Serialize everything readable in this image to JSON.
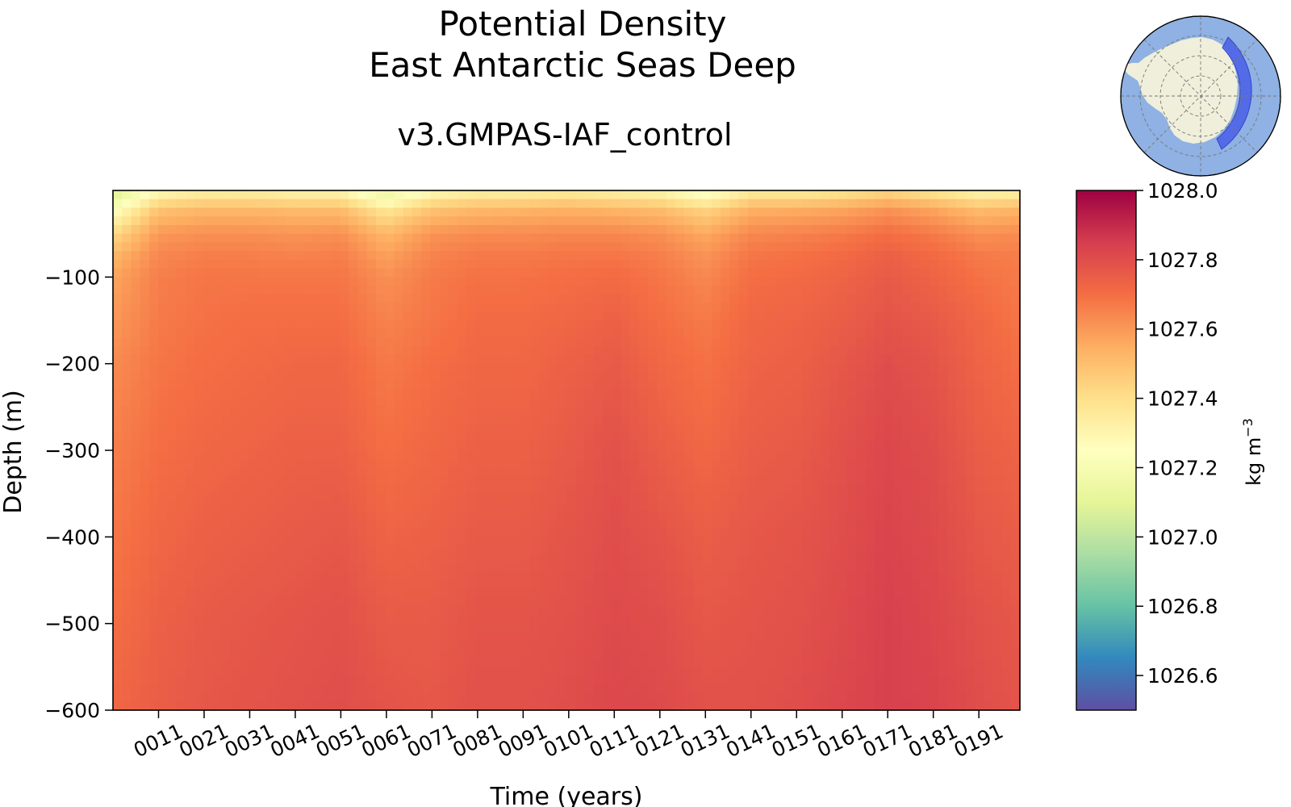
{
  "chart_data": {
    "type": "heatmap",
    "title": [
      "Potential Density",
      "East Antarctic Seas Deep"
    ],
    "subtitle": "v3.GMPAS-IAF_control",
    "xlabel": "Time (years)",
    "ylabel": "Depth (m)",
    "x_range": [
      1,
      200
    ],
    "y_range": [
      -600,
      0
    ],
    "x_ticks": [
      {
        "value": 11,
        "label": "0011"
      },
      {
        "value": 21,
        "label": "0021"
      },
      {
        "value": 31,
        "label": "0031"
      },
      {
        "value": 41,
        "label": "0041"
      },
      {
        "value": 51,
        "label": "0051"
      },
      {
        "value": 61,
        "label": "0061"
      },
      {
        "value": 71,
        "label": "0071"
      },
      {
        "value": 81,
        "label": "0081"
      },
      {
        "value": 91,
        "label": "0091"
      },
      {
        "value": 101,
        "label": "0101"
      },
      {
        "value": 111,
        "label": "0111"
      },
      {
        "value": 121,
        "label": "0121"
      },
      {
        "value": 131,
        "label": "0131"
      },
      {
        "value": 141,
        "label": "0141"
      },
      {
        "value": 151,
        "label": "0151"
      },
      {
        "value": 161,
        "label": "0161"
      },
      {
        "value": 171,
        "label": "0171"
      },
      {
        "value": 181,
        "label": "0181"
      },
      {
        "value": 191,
        "label": "0191"
      }
    ],
    "y_ticks": [
      {
        "value": -100,
        "label": "−100"
      },
      {
        "value": -200,
        "label": "−200"
      },
      {
        "value": -300,
        "label": "−300"
      },
      {
        "value": -400,
        "label": "−400"
      },
      {
        "value": -500,
        "label": "−500"
      },
      {
        "value": -600,
        "label": "−600"
      }
    ],
    "depths": [
      0,
      -10,
      -25,
      -50,
      -75,
      -100,
      -150,
      -200,
      -300,
      -400,
      -500,
      -600
    ],
    "years": [
      1,
      11,
      21,
      31,
      41,
      51,
      61,
      71,
      81,
      91,
      101,
      111,
      121,
      131,
      141,
      151,
      161,
      171,
      181,
      191,
      200
    ],
    "values": [
      [
        1027.05,
        1027.25,
        1027.3,
        1027.3,
        1027.28,
        1027.28,
        1027.1,
        1027.25,
        1027.3,
        1027.3,
        1027.32,
        1027.3,
        1027.28,
        1027.2,
        1027.32,
        1027.32,
        1027.35,
        1027.4,
        1027.35,
        1027.28,
        1027.3
      ],
      [
        1027.12,
        1027.38,
        1027.42,
        1027.42,
        1027.4,
        1027.4,
        1027.22,
        1027.38,
        1027.42,
        1027.42,
        1027.44,
        1027.42,
        1027.4,
        1027.3,
        1027.44,
        1027.44,
        1027.47,
        1027.52,
        1027.47,
        1027.4,
        1027.42
      ],
      [
        1027.25,
        1027.5,
        1027.53,
        1027.53,
        1027.52,
        1027.52,
        1027.38,
        1027.5,
        1027.53,
        1027.54,
        1027.55,
        1027.54,
        1027.52,
        1027.45,
        1027.55,
        1027.56,
        1027.58,
        1027.62,
        1027.58,
        1027.52,
        1027.54
      ],
      [
        1027.42,
        1027.6,
        1027.62,
        1027.62,
        1027.61,
        1027.62,
        1027.52,
        1027.61,
        1027.63,
        1027.63,
        1027.64,
        1027.64,
        1027.62,
        1027.56,
        1027.64,
        1027.65,
        1027.67,
        1027.7,
        1027.67,
        1027.62,
        1027.63
      ],
      [
        1027.52,
        1027.64,
        1027.66,
        1027.66,
        1027.65,
        1027.66,
        1027.58,
        1027.65,
        1027.67,
        1027.67,
        1027.68,
        1027.68,
        1027.66,
        1027.61,
        1027.68,
        1027.69,
        1027.71,
        1027.74,
        1027.71,
        1027.67,
        1027.66
      ],
      [
        1027.57,
        1027.66,
        1027.68,
        1027.68,
        1027.68,
        1027.68,
        1027.62,
        1027.67,
        1027.69,
        1027.69,
        1027.7,
        1027.71,
        1027.68,
        1027.64,
        1027.7,
        1027.71,
        1027.73,
        1027.76,
        1027.73,
        1027.69,
        1027.67
      ],
      [
        1027.6,
        1027.67,
        1027.69,
        1027.7,
        1027.7,
        1027.7,
        1027.65,
        1027.68,
        1027.71,
        1027.71,
        1027.72,
        1027.74,
        1027.7,
        1027.67,
        1027.72,
        1027.73,
        1027.75,
        1027.78,
        1027.76,
        1027.72,
        1027.68
      ],
      [
        1027.63,
        1027.68,
        1027.7,
        1027.71,
        1027.72,
        1027.72,
        1027.67,
        1027.7,
        1027.72,
        1027.72,
        1027.74,
        1027.76,
        1027.72,
        1027.69,
        1027.73,
        1027.74,
        1027.77,
        1027.8,
        1027.78,
        1027.73,
        1027.7
      ],
      [
        1027.66,
        1027.7,
        1027.72,
        1027.73,
        1027.74,
        1027.74,
        1027.7,
        1027.72,
        1027.74,
        1027.74,
        1027.76,
        1027.79,
        1027.75,
        1027.72,
        1027.75,
        1027.76,
        1027.79,
        1027.82,
        1027.8,
        1027.75,
        1027.73
      ],
      [
        1027.68,
        1027.72,
        1027.74,
        1027.75,
        1027.76,
        1027.77,
        1027.73,
        1027.74,
        1027.76,
        1027.76,
        1027.78,
        1027.8,
        1027.78,
        1027.75,
        1027.77,
        1027.78,
        1027.8,
        1027.83,
        1027.81,
        1027.77,
        1027.75
      ],
      [
        1027.7,
        1027.74,
        1027.76,
        1027.77,
        1027.78,
        1027.79,
        1027.76,
        1027.76,
        1027.78,
        1027.78,
        1027.79,
        1027.81,
        1027.8,
        1027.77,
        1027.78,
        1027.79,
        1027.81,
        1027.84,
        1027.82,
        1027.79,
        1027.77
      ],
      [
        1027.72,
        1027.75,
        1027.77,
        1027.78,
        1027.79,
        1027.8,
        1027.78,
        1027.77,
        1027.79,
        1027.79,
        1027.8,
        1027.82,
        1027.81,
        1027.79,
        1027.79,
        1027.8,
        1027.82,
        1027.84,
        1027.83,
        1027.8,
        1027.78
      ]
    ],
    "colorbar": {
      "label": "kg m",
      "label_superscript": "−3",
      "range": [
        1026.5,
        1028.0
      ],
      "ticks": [
        {
          "value": 1026.6,
          "label": "1026.6"
        },
        {
          "value": 1026.8,
          "label": "1026.8"
        },
        {
          "value": 1027.0,
          "label": "1027.0"
        },
        {
          "value": 1027.2,
          "label": "1027.2"
        },
        {
          "value": 1027.4,
          "label": "1027.4"
        },
        {
          "value": 1027.6,
          "label": "1027.6"
        },
        {
          "value": 1027.8,
          "label": "1027.8"
        },
        {
          "value": 1028.0,
          "label": "1028.0"
        }
      ],
      "colormap": "Spectral_r",
      "stops": [
        "#5e4fa2",
        "#3288bd",
        "#66c2a5",
        "#abdda4",
        "#e6f598",
        "#ffffbf",
        "#fee08b",
        "#fdae61",
        "#f46d43",
        "#d53e4f",
        "#9e0142"
      ]
    },
    "inset_map": {
      "region": "East Antarctic Seas Deep",
      "ocean_color": "#8fb1e3",
      "land_color": "#efefdb",
      "region_color": "#4a5fe8"
    },
    "grid": false,
    "legend": "none"
  }
}
